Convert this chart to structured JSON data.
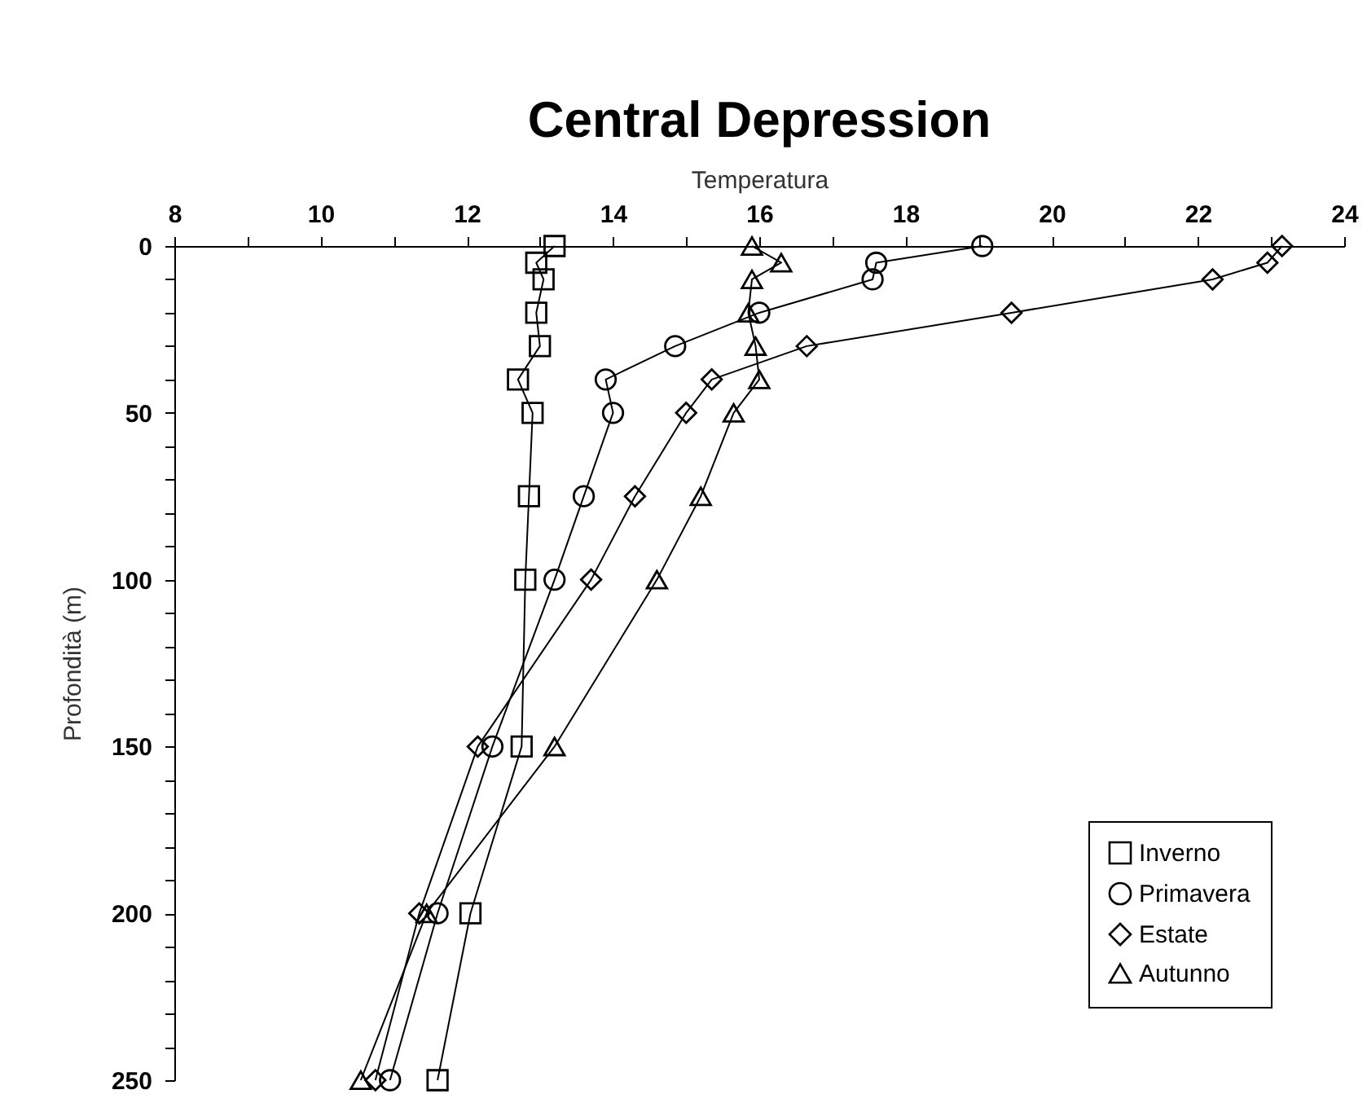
{
  "chart_data": {
    "type": "line",
    "title": "Central Depression",
    "xlabel": "Temperatura",
    "ylabel": "Profondità (m)",
    "xlim": [
      8,
      24
    ],
    "xticks": [
      8,
      {
        "value": 9,
        "label": null
      },
      10,
      {
        "value": 11,
        "label": null
      },
      12,
      {
        "value": 13,
        "label": null
      },
      14,
      {
        "value": 15,
        "label": null
      },
      16,
      {
        "value": 17,
        "label": null
      },
      18,
      {
        "value": 19,
        "label": null
      },
      20,
      {
        "value": 21,
        "label": null
      },
      22,
      {
        "value": 23,
        "label": null
      },
      24
    ],
    "ylim": [
      250,
      0
    ],
    "yticks": [
      0,
      {
        "value": 10,
        "label": null
      },
      {
        "value": 20,
        "label": null
      },
      {
        "value": 30,
        "label": null
      },
      {
        "value": 40,
        "label": null
      },
      50,
      {
        "value": 60,
        "label": null
      },
      {
        "value": 70,
        "label": null
      },
      {
        "value": 80,
        "label": null
      },
      {
        "value": 90,
        "label": null
      },
      100,
      {
        "value": 110,
        "label": null
      },
      {
        "value": 120,
        "label": null
      },
      {
        "value": 130,
        "label": null
      },
      {
        "value": 140,
        "label": null
      },
      150,
      {
        "value": 160,
        "label": null
      },
      {
        "value": 170,
        "label": null
      },
      {
        "value": 180,
        "label": null
      },
      {
        "value": 190,
        "label": null
      },
      200,
      {
        "value": 210,
        "label": null
      },
      {
        "value": 220,
        "label": null
      },
      {
        "value": 230,
        "label": null
      },
      {
        "value": 240,
        "label": null
      },
      250
    ],
    "legend": "bottom right",
    "grid": false,
    "series": [
      {
        "name": "Inverno",
        "color": "#000000",
        "marker": "square",
        "x": [
          13.2,
          12.95,
          13.05,
          12.95,
          13.0,
          12.7,
          12.9,
          12.85,
          12.8,
          12.75,
          12.05,
          11.6
        ],
        "values": [
          0,
          5,
          10,
          20,
          30,
          40,
          50,
          75,
          100,
          150,
          200,
          250
        ]
      },
      {
        "name": "Primavera",
        "color": "#000000",
        "marker": "circle",
        "x": [
          19.05,
          17.6,
          17.55,
          16.0,
          14.85,
          13.9,
          14.0,
          13.6,
          13.2,
          12.35,
          11.6,
          10.95
        ],
        "values": [
          0,
          5,
          10,
          20,
          30,
          40,
          50,
          75,
          100,
          150,
          200,
          250
        ]
      },
      {
        "name": "Estate",
        "color": "#000000",
        "marker": "diamond",
        "x": [
          23.15,
          22.95,
          22.2,
          19.45,
          16.65,
          15.35,
          15.0,
          14.3,
          13.7,
          12.15,
          11.35,
          10.75
        ],
        "values": [
          0,
          5,
          10,
          20,
          30,
          40,
          50,
          75,
          100,
          150,
          200,
          250
        ]
      },
      {
        "name": "Autunno",
        "color": "#000000",
        "marker": "triangle",
        "x": [
          15.9,
          16.3,
          15.9,
          15.85,
          15.95,
          16.0,
          15.65,
          15.2,
          14.6,
          13.2,
          11.45,
          10.55
        ],
        "values": [
          0,
          5,
          10,
          20,
          30,
          40,
          50,
          75,
          100,
          150,
          200,
          250
        ]
      }
    ]
  }
}
